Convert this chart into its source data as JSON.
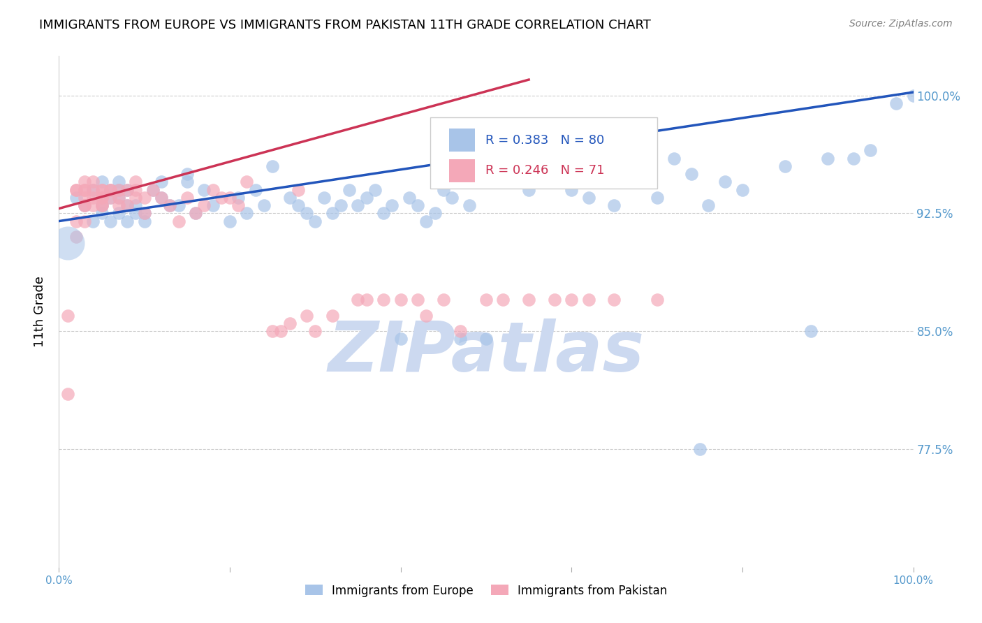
{
  "title": "IMMIGRANTS FROM EUROPE VS IMMIGRANTS FROM PAKISTAN 11TH GRADE CORRELATION CHART",
  "source": "Source: ZipAtlas.com",
  "ylabel": "11th Grade",
  "xlim": [
    0.0,
    1.0
  ],
  "ylim": [
    0.7,
    1.025
  ],
  "yticks": [
    0.775,
    0.85,
    0.925,
    1.0
  ],
  "ytick_labels": [
    "77.5%",
    "85.0%",
    "92.5%",
    "100.0%"
  ],
  "xticks": [
    0.0,
    0.2,
    0.4,
    0.6,
    0.8,
    1.0
  ],
  "xtick_labels": [
    "0.0%",
    "",
    "",
    "",
    "",
    "100.0%"
  ],
  "blue_R": 0.383,
  "blue_N": 80,
  "pink_R": 0.246,
  "pink_N": 71,
  "blue_color": "#a8c4e8",
  "pink_color": "#f4a8b8",
  "blue_line_color": "#2255bb",
  "pink_line_color": "#cc3355",
  "legend_blue_label": "Immigrants from Europe",
  "legend_pink_label": "Immigrants from Pakistan",
  "blue_scatter_x": [
    0.02,
    0.03,
    0.04,
    0.04,
    0.05,
    0.05,
    0.05,
    0.06,
    0.06,
    0.06,
    0.07,
    0.07,
    0.07,
    0.07,
    0.08,
    0.08,
    0.08,
    0.09,
    0.09,
    0.1,
    0.1,
    0.11,
    0.12,
    0.12,
    0.13,
    0.14,
    0.15,
    0.15,
    0.16,
    0.17,
    0.18,
    0.2,
    0.21,
    0.22,
    0.23,
    0.24,
    0.25,
    0.27,
    0.28,
    0.29,
    0.3,
    0.31,
    0.32,
    0.33,
    0.34,
    0.35,
    0.36,
    0.37,
    0.38,
    0.39,
    0.4,
    0.41,
    0.42,
    0.43,
    0.44,
    0.45,
    0.46,
    0.47,
    0.48,
    0.5,
    0.55,
    0.57,
    0.6,
    0.62,
    0.65,
    0.67,
    0.7,
    0.72,
    0.74,
    0.75,
    0.76,
    0.78,
    0.8,
    0.85,
    0.88,
    0.9,
    0.93,
    0.95,
    0.98,
    1.0
  ],
  "blue_scatter_y": [
    0.935,
    0.93,
    0.92,
    0.94,
    0.925,
    0.93,
    0.945,
    0.92,
    0.935,
    0.94,
    0.925,
    0.935,
    0.94,
    0.945,
    0.92,
    0.93,
    0.94,
    0.925,
    0.93,
    0.92,
    0.925,
    0.94,
    0.935,
    0.945,
    0.93,
    0.93,
    0.95,
    0.945,
    0.925,
    0.94,
    0.93,
    0.92,
    0.935,
    0.925,
    0.94,
    0.93,
    0.955,
    0.935,
    0.93,
    0.925,
    0.92,
    0.935,
    0.925,
    0.93,
    0.94,
    0.93,
    0.935,
    0.94,
    0.925,
    0.93,
    0.845,
    0.935,
    0.93,
    0.92,
    0.925,
    0.94,
    0.935,
    0.845,
    0.93,
    0.845,
    0.94,
    0.96,
    0.94,
    0.935,
    0.93,
    0.95,
    0.935,
    0.96,
    0.95,
    0.775,
    0.93,
    0.945,
    0.94,
    0.955,
    0.85,
    0.96,
    0.96,
    0.965,
    0.995,
    1.0
  ],
  "pink_scatter_x": [
    0.01,
    0.01,
    0.02,
    0.02,
    0.02,
    0.02,
    0.03,
    0.03,
    0.03,
    0.03,
    0.03,
    0.03,
    0.03,
    0.04,
    0.04,
    0.04,
    0.04,
    0.05,
    0.05,
    0.05,
    0.05,
    0.05,
    0.05,
    0.06,
    0.06,
    0.06,
    0.07,
    0.07,
    0.07,
    0.08,
    0.08,
    0.09,
    0.09,
    0.09,
    0.1,
    0.1,
    0.11,
    0.12,
    0.13,
    0.14,
    0.15,
    0.16,
    0.17,
    0.18,
    0.19,
    0.2,
    0.21,
    0.22,
    0.25,
    0.26,
    0.27,
    0.28,
    0.29,
    0.3,
    0.32,
    0.35,
    0.36,
    0.38,
    0.4,
    0.42,
    0.43,
    0.45,
    0.47,
    0.5,
    0.52,
    0.55,
    0.58,
    0.6,
    0.62,
    0.65,
    0.7
  ],
  "pink_scatter_y": [
    0.86,
    0.81,
    0.94,
    0.92,
    0.91,
    0.94,
    0.93,
    0.94,
    0.94,
    0.935,
    0.93,
    0.92,
    0.945,
    0.935,
    0.93,
    0.94,
    0.945,
    0.93,
    0.935,
    0.94,
    0.94,
    0.935,
    0.93,
    0.94,
    0.935,
    0.94,
    0.93,
    0.935,
    0.94,
    0.93,
    0.94,
    0.935,
    0.94,
    0.945,
    0.925,
    0.935,
    0.94,
    0.935,
    0.93,
    0.92,
    0.935,
    0.925,
    0.93,
    0.94,
    0.935,
    0.935,
    0.93,
    0.945,
    0.85,
    0.85,
    0.855,
    0.94,
    0.86,
    0.85,
    0.86,
    0.87,
    0.87,
    0.87,
    0.87,
    0.87,
    0.86,
    0.87,
    0.85,
    0.87,
    0.87,
    0.87,
    0.87,
    0.87,
    0.87,
    0.87,
    0.87
  ],
  "blue_big_x": [
    0.01
  ],
  "blue_big_y": [
    0.906
  ],
  "blue_trend_x0": 0.0,
  "blue_trend_y0": 0.92,
  "blue_trend_x1": 1.0,
  "blue_trend_y1": 1.002,
  "pink_trend_x0": 0.0,
  "pink_trend_y0": 0.928,
  "pink_trend_x1": 0.55,
  "pink_trend_y1": 1.01,
  "watermark_text": "ZIPatlas",
  "watermark_color": "#ccd9f0",
  "background_color": "#ffffff",
  "grid_color": "#cccccc",
  "tick_color": "#5599cc",
  "right_label_color": "#5599cc"
}
